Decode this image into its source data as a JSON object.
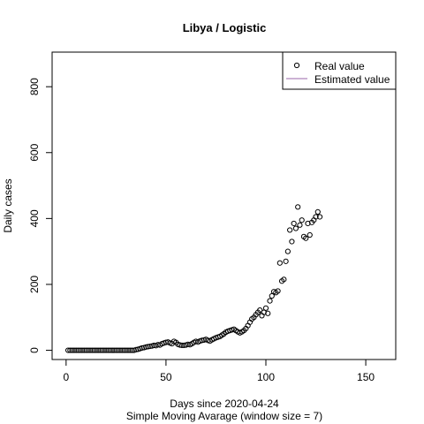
{
  "chart_data": {
    "type": "scatter",
    "title": "Libya / Logistic",
    "xlabel": "Days since 2020-04-24",
    "subtitle": "Simple Moving Avarage (window size = 7)",
    "ylabel": "Daily cases",
    "xlim": [
      -7,
      165
    ],
    "ylim": [
      -28,
      905
    ],
    "x_ticks": [
      0,
      50,
      100,
      150
    ],
    "y_ticks": [
      0,
      200,
      400,
      600,
      800
    ],
    "legend": {
      "position": "top-right",
      "entries": [
        {
          "label": "Real value",
          "marker": "circle",
          "color": "#000000"
        },
        {
          "label": "Estimated value",
          "marker": "line",
          "color": "#9966aa"
        }
      ]
    },
    "series": [
      {
        "name": "Real value",
        "color": "#000000",
        "points": [
          [
            1,
            0
          ],
          [
            2,
            0
          ],
          [
            3,
            0
          ],
          [
            4,
            0
          ],
          [
            5,
            0
          ],
          [
            6,
            0
          ],
          [
            7,
            0
          ],
          [
            8,
            0
          ],
          [
            9,
            0
          ],
          [
            10,
            0
          ],
          [
            11,
            0
          ],
          [
            12,
            0
          ],
          [
            13,
            0
          ],
          [
            14,
            0
          ],
          [
            15,
            0
          ],
          [
            16,
            0
          ],
          [
            17,
            0
          ],
          [
            18,
            0
          ],
          [
            19,
            0
          ],
          [
            20,
            0
          ],
          [
            21,
            0
          ],
          [
            22,
            0
          ],
          [
            23,
            0
          ],
          [
            24,
            0
          ],
          [
            25,
            0
          ],
          [
            26,
            0
          ],
          [
            27,
            0
          ],
          [
            28,
            0
          ],
          [
            29,
            0
          ],
          [
            30,
            0
          ],
          [
            31,
            0
          ],
          [
            32,
            0
          ],
          [
            33,
            0
          ],
          [
            34,
            0
          ],
          [
            35,
            2
          ],
          [
            36,
            3
          ],
          [
            37,
            5
          ],
          [
            38,
            7
          ],
          [
            39,
            8
          ],
          [
            40,
            10
          ],
          [
            41,
            11
          ],
          [
            42,
            12
          ],
          [
            43,
            13
          ],
          [
            44,
            15
          ],
          [
            45,
            14
          ],
          [
            46,
            17
          ],
          [
            47,
            16
          ],
          [
            48,
            20
          ],
          [
            49,
            22
          ],
          [
            50,
            24
          ],
          [
            51,
            25
          ],
          [
            52,
            22
          ],
          [
            53,
            20
          ],
          [
            54,
            27
          ],
          [
            55,
            24
          ],
          [
            56,
            18
          ],
          [
            57,
            16
          ],
          [
            58,
            15
          ],
          [
            59,
            15
          ],
          [
            60,
            16
          ],
          [
            61,
            18
          ],
          [
            62,
            17
          ],
          [
            63,
            20
          ],
          [
            64,
            24
          ],
          [
            65,
            27
          ],
          [
            66,
            25
          ],
          [
            67,
            28
          ],
          [
            68,
            30
          ],
          [
            69,
            31
          ],
          [
            70,
            33
          ],
          [
            71,
            30
          ],
          [
            72,
            28
          ],
          [
            73,
            32
          ],
          [
            74,
            35
          ],
          [
            75,
            38
          ],
          [
            76,
            40
          ],
          [
            77,
            42
          ],
          [
            78,
            46
          ],
          [
            79,
            50
          ],
          [
            80,
            55
          ],
          [
            81,
            58
          ],
          [
            82,
            60
          ],
          [
            83,
            62
          ],
          [
            84,
            64
          ],
          [
            85,
            60
          ],
          [
            86,
            56
          ],
          [
            87,
            53
          ],
          [
            88,
            56
          ],
          [
            89,
            60
          ],
          [
            90,
            66
          ],
          [
            91,
            75
          ],
          [
            92,
            85
          ],
          [
            93,
            95
          ],
          [
            94,
            100
          ],
          [
            95,
            108
          ],
          [
            96,
            115
          ],
          [
            97,
            122
          ],
          [
            98,
            105
          ],
          [
            99,
            115
          ],
          [
            100,
            128
          ],
          [
            101,
            112
          ],
          [
            102,
            150
          ],
          [
            103,
            165
          ],
          [
            104,
            178
          ],
          [
            105,
            175
          ],
          [
            106,
            180
          ],
          [
            107,
            265
          ],
          [
            108,
            210
          ],
          [
            109,
            215
          ],
          [
            110,
            270
          ],
          [
            111,
            300
          ],
          [
            112,
            365
          ],
          [
            113,
            330
          ],
          [
            114,
            385
          ],
          [
            115,
            370
          ],
          [
            116,
            435
          ],
          [
            117,
            380
          ],
          [
            118,
            395
          ],
          [
            119,
            345
          ],
          [
            120,
            340
          ],
          [
            121,
            385
          ],
          [
            122,
            350
          ],
          [
            123,
            388
          ],
          [
            124,
            395
          ],
          [
            125,
            405
          ],
          [
            126,
            420
          ],
          [
            127,
            405
          ]
        ]
      }
    ]
  }
}
